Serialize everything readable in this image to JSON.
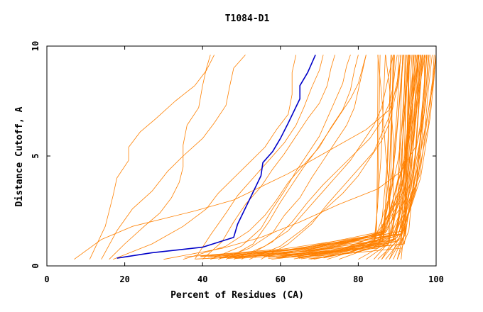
{
  "chart_data": {
    "type": "line",
    "title": "T1084-D1",
    "xlabel": "Percent of Residues (CA)",
    "ylabel": "Distance Cutoff, A",
    "xlim": [
      0,
      100
    ],
    "ylim": [
      0,
      10
    ],
    "x_ticks": [
      0,
      20,
      40,
      60,
      80,
      100
    ],
    "y_ticks": [
      0,
      5,
      10
    ],
    "grid": false,
    "legend": "none",
    "colors": {
      "highlight": "#0000c8",
      "others": "#ff8000",
      "axis": "#000000"
    },
    "highlight_series": {
      "points": [
        [
          18,
          0.35
        ],
        [
          27,
          0.6
        ],
        [
          40,
          0.85
        ],
        [
          48,
          1.3
        ],
        [
          49,
          1.9
        ],
        [
          52,
          3.0
        ],
        [
          55,
          4.1
        ],
        [
          55.5,
          4.7
        ],
        [
          58,
          5.2
        ],
        [
          60,
          5.8
        ],
        [
          62,
          6.5
        ],
        [
          65,
          7.6
        ],
        [
          65,
          8.2
        ],
        [
          67,
          8.8
        ],
        [
          69,
          9.6
        ]
      ]
    },
    "left_series": [
      [
        [
          7,
          0.3
        ],
        [
          14,
          1.2
        ],
        [
          22,
          1.8
        ],
        [
          38,
          2.5
        ],
        [
          48,
          3.0
        ],
        [
          55,
          3.6
        ],
        [
          62,
          4.2
        ],
        [
          70,
          5.0
        ],
        [
          82,
          6.2
        ],
        [
          88,
          7.1
        ],
        [
          90,
          8.2
        ],
        [
          90.5,
          9.6
        ]
      ],
      [
        [
          11,
          0.3
        ],
        [
          15,
          1.8
        ],
        [
          17,
          3.2
        ],
        [
          18,
          4.0
        ],
        [
          21,
          4.8
        ],
        [
          21,
          5.4
        ],
        [
          24,
          6.1
        ],
        [
          28,
          6.7
        ],
        [
          33,
          7.5
        ],
        [
          38,
          8.2
        ],
        [
          41,
          8.9
        ],
        [
          43,
          9.6
        ]
      ],
      [
        [
          14,
          0.3
        ],
        [
          18,
          1.6
        ],
        [
          22,
          2.6
        ],
        [
          27,
          3.4
        ],
        [
          31,
          4.3
        ],
        [
          35,
          5.0
        ],
        [
          40,
          5.8
        ],
        [
          43,
          6.5
        ],
        [
          46,
          7.3
        ],
        [
          47,
          8.2
        ],
        [
          48,
          9.0
        ],
        [
          51,
          9.6
        ]
      ],
      [
        [
          16,
          0.3
        ],
        [
          20,
          1.0
        ],
        [
          25,
          1.8
        ],
        [
          29,
          2.4
        ],
        [
          32,
          3.1
        ],
        [
          34,
          3.8
        ],
        [
          35,
          4.5
        ],
        [
          35,
          5.5
        ],
        [
          36,
          6.4
        ],
        [
          39,
          7.2
        ],
        [
          40,
          8.2
        ],
        [
          41,
          9.0
        ],
        [
          42,
          9.6
        ]
      ],
      [
        [
          17,
          0.3
        ],
        [
          27,
          1.0
        ],
        [
          35,
          1.8
        ],
        [
          41,
          2.6
        ],
        [
          44,
          3.3
        ],
        [
          48,
          4.0
        ],
        [
          52,
          4.7
        ],
        [
          56,
          5.4
        ],
        [
          59,
          6.2
        ],
        [
          62,
          6.9
        ],
        [
          63,
          7.8
        ],
        [
          63,
          8.8
        ],
        [
          64,
          9.6
        ]
      ]
    ],
    "mid_series": [
      [
        [
          30,
          0.3
        ],
        [
          45,
          0.8
        ],
        [
          55,
          1.3
        ],
        [
          65,
          2.0
        ],
        [
          75,
          2.8
        ],
        [
          85,
          3.5
        ],
        [
          91,
          4.3
        ],
        [
          95,
          5.5
        ],
        [
          97,
          7.0
        ],
        [
          98,
          8.5
        ],
        [
          98.5,
          9.6
        ]
      ],
      [
        [
          35,
          0.3
        ],
        [
          46,
          0.9
        ],
        [
          52,
          1.6
        ],
        [
          56,
          2.3
        ],
        [
          59,
          3.0
        ],
        [
          62,
          3.8
        ],
        [
          66,
          4.6
        ],
        [
          70,
          5.4
        ],
        [
          73,
          6.3
        ],
        [
          76,
          7.1
        ],
        [
          78,
          8.0
        ],
        [
          79,
          8.9
        ],
        [
          80,
          9.6
        ]
      ],
      [
        [
          38,
          0.3
        ],
        [
          42,
          1.4
        ],
        [
          46,
          2.4
        ],
        [
          49,
          3.2
        ],
        [
          53,
          4.0
        ],
        [
          57,
          4.8
        ],
        [
          61,
          5.6
        ],
        [
          64,
          6.4
        ],
        [
          66,
          7.2
        ],
        [
          68,
          8.1
        ],
        [
          70,
          8.9
        ],
        [
          71,
          9.6
        ]
      ],
      [
        [
          40,
          0.3
        ],
        [
          45,
          1.1
        ],
        [
          48,
          2.0
        ],
        [
          51,
          2.8
        ],
        [
          55,
          3.6
        ],
        [
          58,
          4.4
        ],
        [
          61,
          5.1
        ],
        [
          64,
          5.9
        ],
        [
          67,
          6.7
        ],
        [
          70,
          7.4
        ],
        [
          72,
          8.2
        ],
        [
          73,
          9.0
        ],
        [
          74,
          9.6
        ]
      ],
      [
        [
          42,
          0.3
        ],
        [
          50,
          0.9
        ],
        [
          55,
          1.7
        ],
        [
          58,
          2.6
        ],
        [
          61,
          3.4
        ],
        [
          64,
          4.3
        ],
        [
          67,
          5.1
        ],
        [
          70,
          5.9
        ],
        [
          72,
          6.7
        ],
        [
          74,
          7.5
        ],
        [
          76,
          8.3
        ],
        [
          77,
          9.1
        ],
        [
          78,
          9.6
        ]
      ],
      [
        [
          44,
          0.3
        ],
        [
          52,
          0.8
        ],
        [
          58,
          1.5
        ],
        [
          61,
          2.3
        ],
        [
          65,
          3.1
        ],
        [
          68,
          4.0
        ],
        [
          71,
          4.8
        ],
        [
          74,
          5.6
        ],
        [
          77,
          6.4
        ],
        [
          79,
          7.2
        ],
        [
          80,
          8.0
        ],
        [
          81,
          8.8
        ],
        [
          82,
          9.6
        ]
      ],
      [
        [
          46,
          0.3
        ],
        [
          53,
          1.0
        ],
        [
          57,
          2.0
        ],
        [
          60,
          2.9
        ],
        [
          63,
          3.7
        ],
        [
          66,
          4.5
        ],
        [
          69,
          5.2
        ],
        [
          72,
          6.0
        ],
        [
          75,
          6.8
        ],
        [
          78,
          7.6
        ],
        [
          80,
          8.3
        ],
        [
          82,
          9.6
        ]
      ],
      [
        [
          48,
          0.3
        ],
        [
          56,
          0.9
        ],
        [
          62,
          1.6
        ],
        [
          66,
          2.4
        ],
        [
          70,
          3.2
        ],
        [
          74,
          4.0
        ],
        [
          78,
          4.8
        ],
        [
          81,
          5.6
        ],
        [
          84,
          6.4
        ],
        [
          86,
          7.2
        ],
        [
          87,
          8.0
        ],
        [
          88,
          8.8
        ],
        [
          89,
          9.6
        ]
      ],
      [
        [
          50,
          0.3
        ],
        [
          58,
          1.1
        ],
        [
          63,
          2.0
        ],
        [
          67,
          2.9
        ],
        [
          71,
          3.7
        ],
        [
          75,
          4.4
        ],
        [
          79,
          5.1
        ],
        [
          83,
          5.8
        ],
        [
          86,
          6.6
        ],
        [
          88,
          7.4
        ],
        [
          89,
          8.2
        ],
        [
          89.5,
          9.0
        ],
        [
          90,
          9.6
        ]
      ],
      [
        [
          52,
          0.3
        ],
        [
          60,
          0.9
        ],
        [
          66,
          1.7
        ],
        [
          71,
          2.5
        ],
        [
          76,
          3.3
        ],
        [
          80,
          4.1
        ],
        [
          83,
          4.9
        ],
        [
          86,
          5.7
        ],
        [
          88,
          6.5
        ],
        [
          89,
          7.3
        ],
        [
          90,
          8.1
        ],
        [
          91,
          9.6
        ]
      ],
      [
        [
          55,
          0.3
        ],
        [
          62,
          1.0
        ],
        [
          68,
          1.9
        ],
        [
          72,
          2.8
        ],
        [
          76,
          3.6
        ],
        [
          80,
          4.4
        ],
        [
          84,
          5.2
        ],
        [
          86,
          6.0
        ],
        [
          88,
          6.8
        ],
        [
          89,
          7.6
        ],
        [
          90,
          8.4
        ],
        [
          91,
          9.6
        ]
      ]
    ],
    "right_series": [
      [
        [
          72,
          0.3
        ],
        [
          88,
          1.2
        ],
        [
          92,
          3.0
        ],
        [
          94,
          5.2
        ],
        [
          95,
          7.0
        ],
        [
          95.5,
          9.6
        ]
      ],
      [
        [
          75,
          0.3
        ],
        [
          89,
          1.2
        ],
        [
          93,
          3.2
        ],
        [
          96,
          5.8
        ],
        [
          97,
          7.6
        ],
        [
          97.5,
          9.6
        ]
      ],
      [
        [
          80,
          0.3
        ],
        [
          90,
          1.3
        ],
        [
          94,
          3.5
        ],
        [
          97,
          6.0
        ],
        [
          98,
          8.0
        ],
        [
          99,
          9.6
        ]
      ],
      [
        [
          82,
          0.3
        ],
        [
          90,
          1.3
        ],
        [
          95,
          3.8
        ],
        [
          98,
          6.4
        ],
        [
          99,
          8.2
        ],
        [
          99.5,
          9.6
        ]
      ],
      [
        [
          85,
          0.3
        ],
        [
          91,
          1.3
        ],
        [
          96,
          4.0
        ],
        [
          98.5,
          6.8
        ],
        [
          99.5,
          8.6
        ],
        [
          100,
          9.6
        ]
      ],
      [
        [
          86,
          0.3
        ],
        [
          91,
          1.4
        ],
        [
          94,
          4.4
        ],
        [
          96,
          6.5
        ],
        [
          97,
          8.3
        ],
        [
          97,
          9.6
        ]
      ],
      [
        [
          87,
          0.3
        ],
        [
          92,
          1.4
        ],
        [
          93,
          5.0
        ],
        [
          94,
          7.5
        ],
        [
          94,
          9.6
        ]
      ],
      [
        [
          88,
          0.3
        ],
        [
          92,
          1.4
        ],
        [
          95,
          4.6
        ],
        [
          97,
          7.0
        ],
        [
          98,
          9.6
        ]
      ],
      [
        [
          88,
          0.3
        ],
        [
          91,
          1.5
        ],
        [
          92,
          4.8
        ],
        [
          93,
          7.2
        ],
        [
          93,
          9.6
        ]
      ],
      [
        [
          89,
          0.3
        ],
        [
          92,
          1.5
        ],
        [
          96,
          5.2
        ],
        [
          99,
          8.0
        ],
        [
          100,
          9.6
        ]
      ],
      [
        [
          90,
          0.3
        ],
        [
          92,
          1.6
        ],
        [
          92,
          9.6
        ]
      ],
      [
        [
          90,
          0.3
        ],
        [
          93,
          1.6
        ],
        [
          95,
          5.6
        ],
        [
          96,
          9.6
        ]
      ],
      [
        [
          91,
          0.3
        ],
        [
          92,
          2.0
        ],
        [
          93,
          9.6
        ]
      ],
      [
        [
          86,
          0.3
        ],
        [
          89,
          1.2
        ],
        [
          89,
          5.8
        ],
        [
          88,
          8.2
        ],
        [
          87,
          9.6
        ]
      ],
      [
        [
          84,
          0.3
        ],
        [
          88,
          1.1
        ],
        [
          88,
          3.5
        ],
        [
          87,
          5.2
        ],
        [
          86,
          7.8
        ],
        [
          85,
          9.6
        ]
      ]
    ],
    "bundle": {
      "count": 42,
      "x_start": [
        35,
        72
      ],
      "x_knee": [
        84,
        92
      ],
      "y_start": [
        0.3,
        0.45
      ],
      "y_knee": [
        0.8,
        1.6
      ]
    }
  }
}
